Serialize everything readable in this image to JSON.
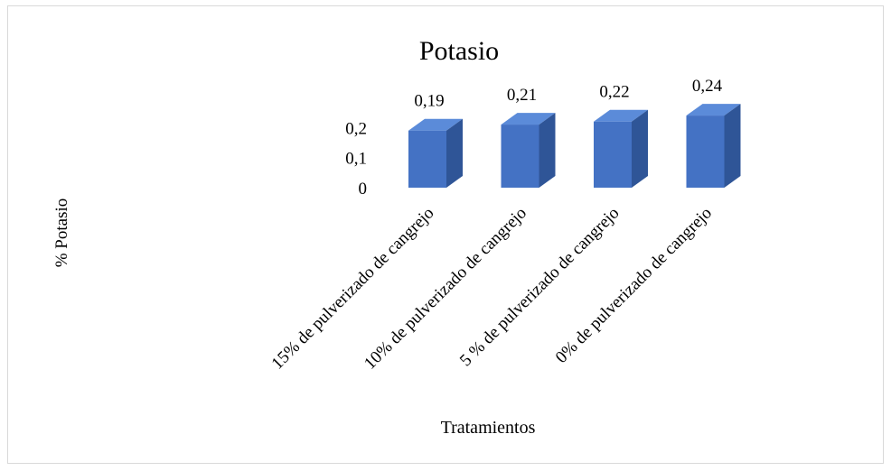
{
  "chart_data": {
    "type": "bar",
    "title": "Potasio",
    "xlabel": "Tratamientos",
    "ylabel": "% Potasio",
    "categories": [
      "15% de pulverizado de cangrejo",
      "10% de pulverizado de cangrejo",
      "5 % de pulverizado de cangrejo",
      "0% de pulverizado de cangrejo"
    ],
    "values": [
      0.19,
      0.21,
      0.22,
      0.24
    ],
    "value_labels": [
      "0,19",
      "0,21",
      "0,22",
      "0,24"
    ],
    "y_ticks": [
      "0",
      "0,1",
      "0,2"
    ],
    "ylim": [
      0,
      0.24
    ],
    "grid": false,
    "legend": "none",
    "bar_style": "3d-column",
    "colors": {
      "front": "#4472C4",
      "side": "#2F5597",
      "top": "#5B8BD9"
    }
  }
}
